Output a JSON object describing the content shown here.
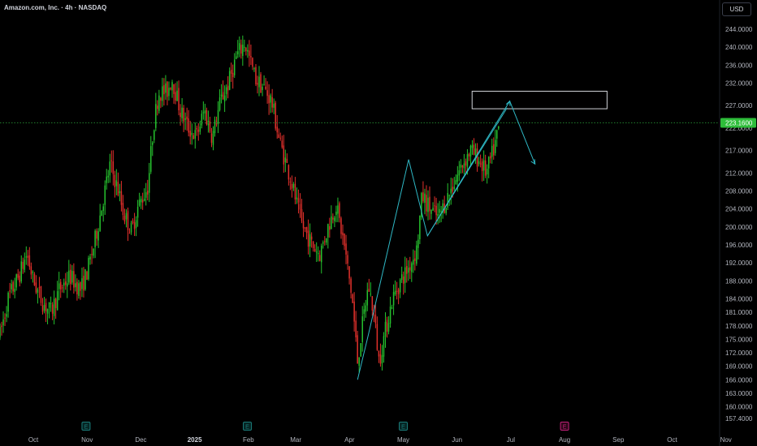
{
  "header": {
    "title": "Amazon.com, Inc. · 4h · NASDAQ",
    "currency": "USD"
  },
  "colors": {
    "background": "#000000",
    "up": "#26c12e",
    "down": "#e0302b",
    "pattern": "#2fb9c6",
    "box": "#cfd2d6",
    "price_line": "#1f7a2b",
    "price_badge": "#2ebd3a",
    "earnings_past": "#1a7a78",
    "earnings_future": "#c2217a"
  },
  "chart_data": {
    "type": "candlestick",
    "symbol": "AMZN",
    "timeframe": "4h",
    "ylim": [
      154.5,
      250.5
    ],
    "y_ticks": [
      157.4,
      160.0,
      163.0,
      166.0,
      169.0,
      172.0,
      175.0,
      178.0,
      181.0,
      184.0,
      188.0,
      192.0,
      196.0,
      200.0,
      204.0,
      208.0,
      212.0,
      217.0,
      222.0,
      227.0,
      232.0,
      236.0,
      240.0,
      244.0
    ],
    "y_tick_labels": [
      "157.4000",
      "160.0000",
      "163.0000",
      "166.0000",
      "169.0000",
      "172.0000",
      "175.0000",
      "178.0000",
      "181.0000",
      "184.0000",
      "188.0000",
      "192.0000",
      "196.0000",
      "200.0000",
      "204.0000",
      "208.0000",
      "212.0000",
      "217.0000",
      "222.0000",
      "227.0000",
      "232.0000",
      "236.0000",
      "240.0000",
      "244.0000"
    ],
    "x_ticks": [
      {
        "label": "Oct",
        "t": 0.62,
        "bold": false
      },
      {
        "label": "Nov",
        "t": 1.62,
        "bold": false
      },
      {
        "label": "Dec",
        "t": 2.62,
        "bold": false
      },
      {
        "label": "2025",
        "t": 3.62,
        "bold": true
      },
      {
        "label": "Feb",
        "t": 4.62,
        "bold": false
      },
      {
        "label": "Mar",
        "t": 5.5,
        "bold": false
      },
      {
        "label": "Apr",
        "t": 6.5,
        "bold": false
      },
      {
        "label": "May",
        "t": 7.5,
        "bold": false
      },
      {
        "label": "Jun",
        "t": 8.5,
        "bold": false
      },
      {
        "label": "Jul",
        "t": 9.5,
        "bold": false
      },
      {
        "label": "Aug",
        "t": 10.5,
        "bold": false
      },
      {
        "label": "Sep",
        "t": 11.5,
        "bold": false
      },
      {
        "label": "Oct",
        "t": 12.5,
        "bold": false
      },
      {
        "label": "Nov",
        "t": 13.5,
        "bold": false
      }
    ],
    "last_price": 223.16,
    "last_price_label": "223.1600",
    "earnings_markers": [
      {
        "t": 1.6,
        "label": "E",
        "future": false
      },
      {
        "t": 4.6,
        "label": "E",
        "future": false
      },
      {
        "t": 7.5,
        "label": "E",
        "future": false
      },
      {
        "t": 10.5,
        "label": "E",
        "future": true
      }
    ],
    "price_path": [
      [
        0.0,
        176
      ],
      [
        0.15,
        184
      ],
      [
        0.35,
        189
      ],
      [
        0.5,
        194
      ],
      [
        0.62,
        188
      ],
      [
        0.8,
        183
      ],
      [
        0.95,
        181
      ],
      [
        1.1,
        186
      ],
      [
        1.3,
        189
      ],
      [
        1.5,
        186
      ],
      [
        1.62,
        190
      ],
      [
        1.75,
        196
      ],
      [
        1.9,
        205
      ],
      [
        2.05,
        214
      ],
      [
        2.2,
        208
      ],
      [
        2.3,
        203
      ],
      [
        2.45,
        199
      ],
      [
        2.55,
        204
      ],
      [
        2.75,
        209
      ],
      [
        2.85,
        222
      ],
      [
        2.95,
        230
      ],
      [
        3.1,
        230
      ],
      [
        3.2,
        233
      ],
      [
        3.35,
        226
      ],
      [
        3.5,
        222
      ],
      [
        3.65,
        220
      ],
      [
        3.8,
        226
      ],
      [
        3.95,
        220
      ],
      [
        4.1,
        228
      ],
      [
        4.25,
        232
      ],
      [
        4.4,
        238
      ],
      [
        4.55,
        241
      ],
      [
        4.75,
        233
      ],
      [
        4.9,
        231
      ],
      [
        5.05,
        228
      ],
      [
        5.2,
        219
      ],
      [
        5.4,
        211
      ],
      [
        5.6,
        201
      ],
      [
        5.8,
        196
      ],
      [
        5.95,
        194
      ],
      [
        6.1,
        200
      ],
      [
        6.25,
        205
      ],
      [
        6.4,
        196
      ],
      [
        6.55,
        184
      ],
      [
        6.65,
        170
      ],
      [
        6.75,
        179
      ],
      [
        6.85,
        187
      ],
      [
        6.95,
        181
      ],
      [
        7.05,
        170
      ],
      [
        7.15,
        176
      ],
      [
        7.3,
        184
      ],
      [
        7.45,
        188
      ],
      [
        7.6,
        191
      ],
      [
        7.75,
        195
      ],
      [
        7.85,
        207
      ],
      [
        8.0,
        204
      ],
      [
        8.15,
        202
      ],
      [
        8.3,
        206
      ],
      [
        8.45,
        210
      ],
      [
        8.6,
        214
      ],
      [
        8.75,
        217
      ],
      [
        8.9,
        215
      ],
      [
        9.05,
        212
      ],
      [
        9.2,
        218
      ],
      [
        9.3,
        223.16
      ]
    ],
    "wedge_lines": [
      [
        [
          6.65,
          166.0
        ],
        [
          6.85,
          176.0
        ],
        [
          7.6,
          215.0
        ],
        [
          7.95,
          198.0
        ],
        [
          9.48,
          228.0
        ],
        [
          9.95,
          214.0
        ]
      ],
      [
        [
          7.95,
          198.0
        ],
        [
          9.43,
          226.5
        ]
      ]
    ],
    "arrow_tips": [
      {
        "from": [
          9.43,
          226.5
        ],
        "to": [
          9.48,
          228.0
        ]
      },
      {
        "from": [
          9.85,
          216.0
        ],
        "to": [
          9.95,
          214.0
        ]
      }
    ],
    "target_box": {
      "t0": 8.78,
      "t1": 11.29,
      "p_low": 226.3,
      "p_high": 230.2
    }
  }
}
